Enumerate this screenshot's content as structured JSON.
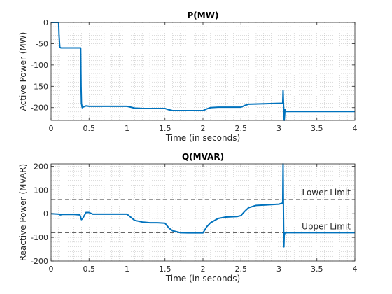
{
  "chart_data": [
    {
      "type": "line",
      "title": "P(MW)",
      "xlabel": "Time (in seconds)",
      "ylabel": "Active Power (MW)",
      "xlim": [
        0,
        4
      ],
      "ylim": [
        -230,
        0
      ],
      "xticks": [
        0,
        0.5,
        1,
        1.5,
        2,
        2.5,
        3,
        3.5,
        4
      ],
      "xtick_labels": [
        "0",
        "0.5",
        "1",
        "1.5",
        "2",
        "2.5",
        "3",
        "3.5",
        "4"
      ],
      "yticks": [
        0,
        -50,
        -100,
        -150,
        -200
      ],
      "ytick_labels": [
        "0",
        "-50",
        "-100",
        "-150",
        "-200"
      ],
      "grid": "minor-dotted",
      "color": "#0072BD",
      "series": [
        {
          "x": [
            0,
            0.1,
            0.105,
            0.115,
            0.13,
            0.2,
            0.3,
            0.39,
            0.395,
            0.4,
            0.41,
            0.43,
            0.46,
            0.5,
            0.6,
            0.8,
            1.0,
            1.05,
            1.1,
            1.2,
            1.4,
            1.5,
            1.55,
            1.6,
            1.8,
            2.0,
            2.05,
            2.1,
            2.2,
            2.4,
            2.5,
            2.55,
            2.6,
            2.8,
            3.0,
            3.05,
            3.055,
            3.06,
            3.07,
            3.08,
            3.09,
            3.1,
            3.2,
            3.5,
            3.8,
            4.0
          ],
          "y": [
            0,
            0,
            -30,
            -58,
            -60,
            -60,
            -60,
            -60,
            -150,
            -190,
            -200,
            -198,
            -196,
            -197,
            -197,
            -197,
            -197,
            -199,
            -201,
            -202,
            -202,
            -202,
            -205,
            -207,
            -207,
            -207,
            -203,
            -200,
            -199,
            -199,
            -199,
            -195,
            -192,
            -191,
            -190,
            -190,
            -160,
            -190,
            -232,
            -205,
            -208,
            -209,
            -209,
            -209,
            -209,
            -209
          ]
        }
      ]
    },
    {
      "type": "line",
      "title": "Q(MVAR)",
      "xlabel": "Time (in seconds)",
      "ylabel": "Reactive Power (MVAR)",
      "xlim": [
        0,
        4
      ],
      "ylim": [
        -200,
        210
      ],
      "xticks": [
        0,
        0.5,
        1,
        1.5,
        2,
        2.5,
        3,
        3.5,
        4
      ],
      "xtick_labels": [
        "0",
        "0.5",
        "1",
        "1.5",
        "2",
        "2.5",
        "3",
        "3.5",
        "4"
      ],
      "yticks": [
        200,
        100,
        0,
        -100,
        -200
      ],
      "ytick_labels": [
        "200",
        "100",
        "0",
        "-100",
        "-200"
      ],
      "grid": "minor-dotted",
      "color": "#0072BD",
      "hlines": [
        {
          "y": 60,
          "label": "Lower Limit"
        },
        {
          "y": -80,
          "label": "Upper Limit"
        }
      ],
      "series": [
        {
          "x": [
            0,
            0.1,
            0.12,
            0.15,
            0.3,
            0.38,
            0.4,
            0.42,
            0.46,
            0.5,
            0.55,
            0.7,
            0.9,
            1.0,
            1.05,
            1.1,
            1.2,
            1.3,
            1.4,
            1.5,
            1.55,
            1.6,
            1.7,
            1.8,
            1.9,
            2.0,
            2.05,
            2.1,
            2.2,
            2.3,
            2.45,
            2.5,
            2.55,
            2.6,
            2.7,
            2.9,
            3.0,
            3.05,
            3.055,
            3.06,
            3.065,
            3.07,
            3.08,
            3.1,
            3.3,
            3.6,
            4.0
          ],
          "y": [
            0,
            -2,
            -5,
            -3,
            -3,
            -5,
            -25,
            -18,
            5,
            5,
            -2,
            -2,
            -2,
            -2,
            -15,
            -28,
            -35,
            -38,
            -38,
            -40,
            -60,
            -72,
            -80,
            -81,
            -81,
            -81,
            -55,
            -38,
            -20,
            -14,
            -12,
            -8,
            10,
            25,
            35,
            38,
            40,
            45,
            210,
            0,
            -140,
            -90,
            -80,
            -80,
            -80,
            -80,
            -80
          ]
        }
      ]
    }
  ]
}
